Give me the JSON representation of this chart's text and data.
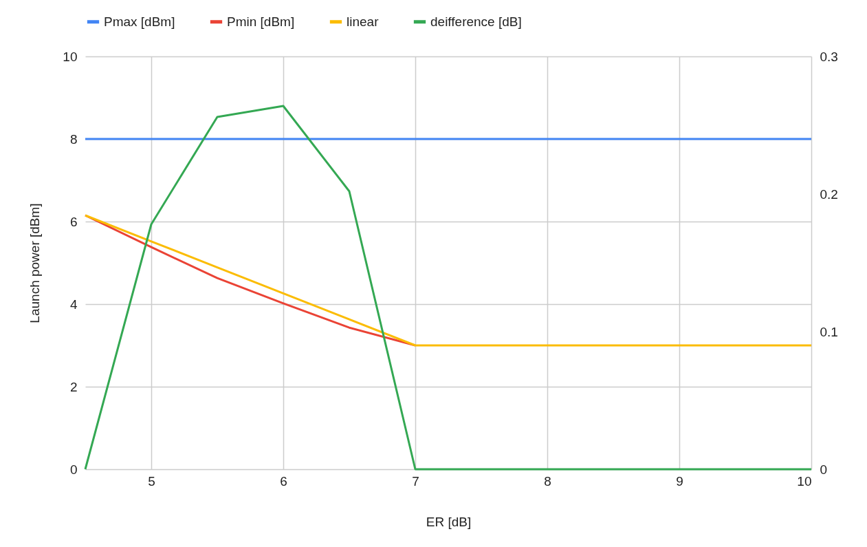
{
  "chart_data": {
    "type": "line",
    "xlabel": "ER [dB]",
    "ylabel": "Launch power [dBm]",
    "x": [
      4.5,
      5,
      5.5,
      6,
      6.5,
      7,
      7.5,
      8,
      8.5,
      9,
      9.5,
      10
    ],
    "series": [
      {
        "name": "Pmax [dBm]",
        "color": "#4285f4",
        "values": [
          8,
          8,
          8,
          8,
          8,
          8,
          8,
          8,
          8,
          8,
          8,
          8
        ]
      },
      {
        "name": "Pmin [dBm]",
        "color": "#ea4335",
        "values": [
          6.15,
          5.38,
          4.63,
          4.02,
          3.43,
          3,
          null,
          null,
          null,
          null,
          null,
          null
        ]
      },
      {
        "name": "linear",
        "color": "#fbbc04",
        "values": [
          6.15,
          5.52,
          4.89,
          4.26,
          3.63,
          3,
          3,
          3,
          3,
          3,
          3,
          3
        ]
      },
      {
        "name": "deifference [dB]",
        "color": "#34a853",
        "axis": "y2",
        "values": [
          0,
          0.178,
          0.256,
          0.264,
          0.202,
          0,
          0,
          0,
          0,
          0,
          0,
          0
        ]
      }
    ],
    "xlim": [
      4.5,
      10
    ],
    "xticks": [
      5,
      6,
      7,
      8,
      9,
      10
    ],
    "ylim": [
      0,
      10
    ],
    "yticks": [
      0,
      2,
      4,
      6,
      8,
      10
    ],
    "y2lim": [
      0,
      0.3
    ],
    "y2ticks": [
      0,
      0.1,
      0.2,
      0.3
    ],
    "grid": true,
    "legend": "top",
    "marker": "none",
    "line_style": "solid"
  }
}
